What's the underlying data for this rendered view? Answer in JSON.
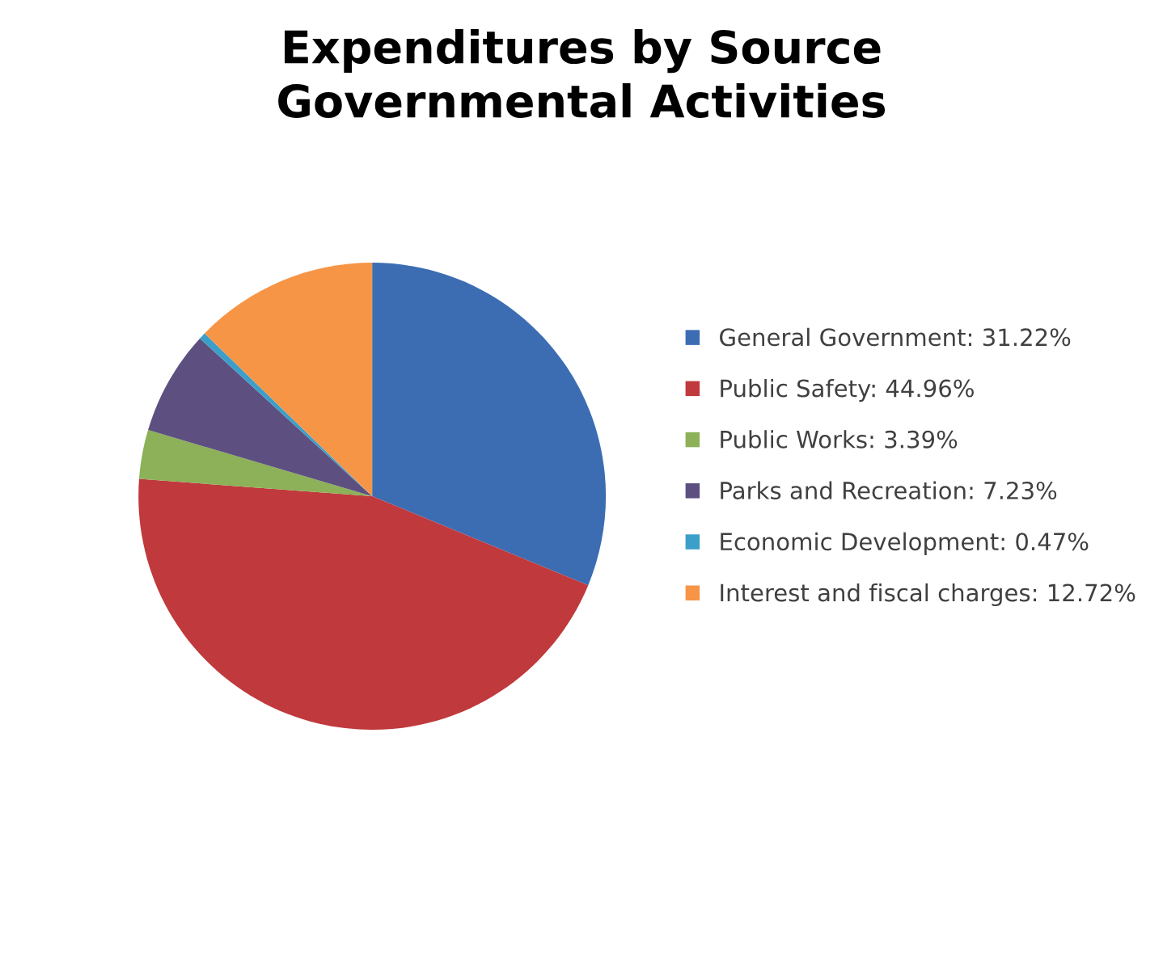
{
  "chart_data": {
    "type": "pie",
    "title": "Expenditures by Source\nGovernmental Activities",
    "categories": [
      "General Government: 31.22%",
      "Public Safety: 44.96%",
      "Public Works: 3.39%",
      "Parks and Recreation: 7.23%",
      "Economic Development: 0.47%",
      "Interest and fiscal charges: 12.72%"
    ],
    "values": [
      31.22,
      44.96,
      3.39,
      7.23,
      0.47,
      12.72
    ],
    "colors": [
      "#3c6db3",
      "#c0393c",
      "#8cb158",
      "#5d5080",
      "#3b9fc9",
      "#f79546"
    ],
    "legend": "right"
  }
}
